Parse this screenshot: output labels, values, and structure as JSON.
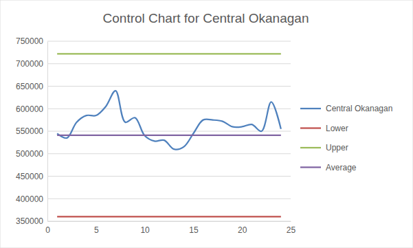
{
  "chart_data": {
    "type": "line",
    "title": "Control Chart for Central Okanagan",
    "x": [
      1,
      2,
      3,
      4,
      5,
      6,
      7,
      8,
      9,
      10,
      11,
      12,
      13,
      14,
      15,
      16,
      17,
      18,
      19,
      20,
      21,
      22,
      23,
      24
    ],
    "series": [
      {
        "name": "Central Okanagan",
        "color": "#4f81bd",
        "line_style": "smooth",
        "values": [
          545000,
          535000,
          570000,
          585000,
          585000,
          605000,
          640000,
          570000,
          580000,
          540000,
          528000,
          530000,
          510000,
          515000,
          545000,
          575000,
          575000,
          572000,
          560000,
          560000,
          565000,
          550000,
          615000,
          555000
        ]
      },
      {
        "name": "Lower",
        "color": "#c0504d",
        "line_style": "solid",
        "values": [
          360000,
          360000,
          360000,
          360000,
          360000,
          360000,
          360000,
          360000,
          360000,
          360000,
          360000,
          360000,
          360000,
          360000,
          360000,
          360000,
          360000,
          360000,
          360000,
          360000,
          360000,
          360000,
          360000,
          360000
        ]
      },
      {
        "name": "Upper",
        "color": "#9bbb59",
        "line_style": "solid",
        "values": [
          722000,
          722000,
          722000,
          722000,
          722000,
          722000,
          722000,
          722000,
          722000,
          722000,
          722000,
          722000,
          722000,
          722000,
          722000,
          722000,
          722000,
          722000,
          722000,
          722000,
          722000,
          722000,
          722000,
          722000
        ]
      },
      {
        "name": "Average",
        "color": "#8064a2",
        "line_style": "solid",
        "values": [
          541000,
          541000,
          541000,
          541000,
          541000,
          541000,
          541000,
          541000,
          541000,
          541000,
          541000,
          541000,
          541000,
          541000,
          541000,
          541000,
          541000,
          541000,
          541000,
          541000,
          541000,
          541000,
          541000,
          541000
        ]
      }
    ],
    "xlim": [
      0,
      25
    ],
    "xticks": [
      0,
      5,
      10,
      15,
      20,
      25
    ],
    "ylim": [
      350000,
      750000
    ],
    "yticks": [
      350000,
      400000,
      450000,
      500000,
      550000,
      600000,
      650000,
      700000,
      750000
    ],
    "grid": true,
    "legend": "right"
  }
}
